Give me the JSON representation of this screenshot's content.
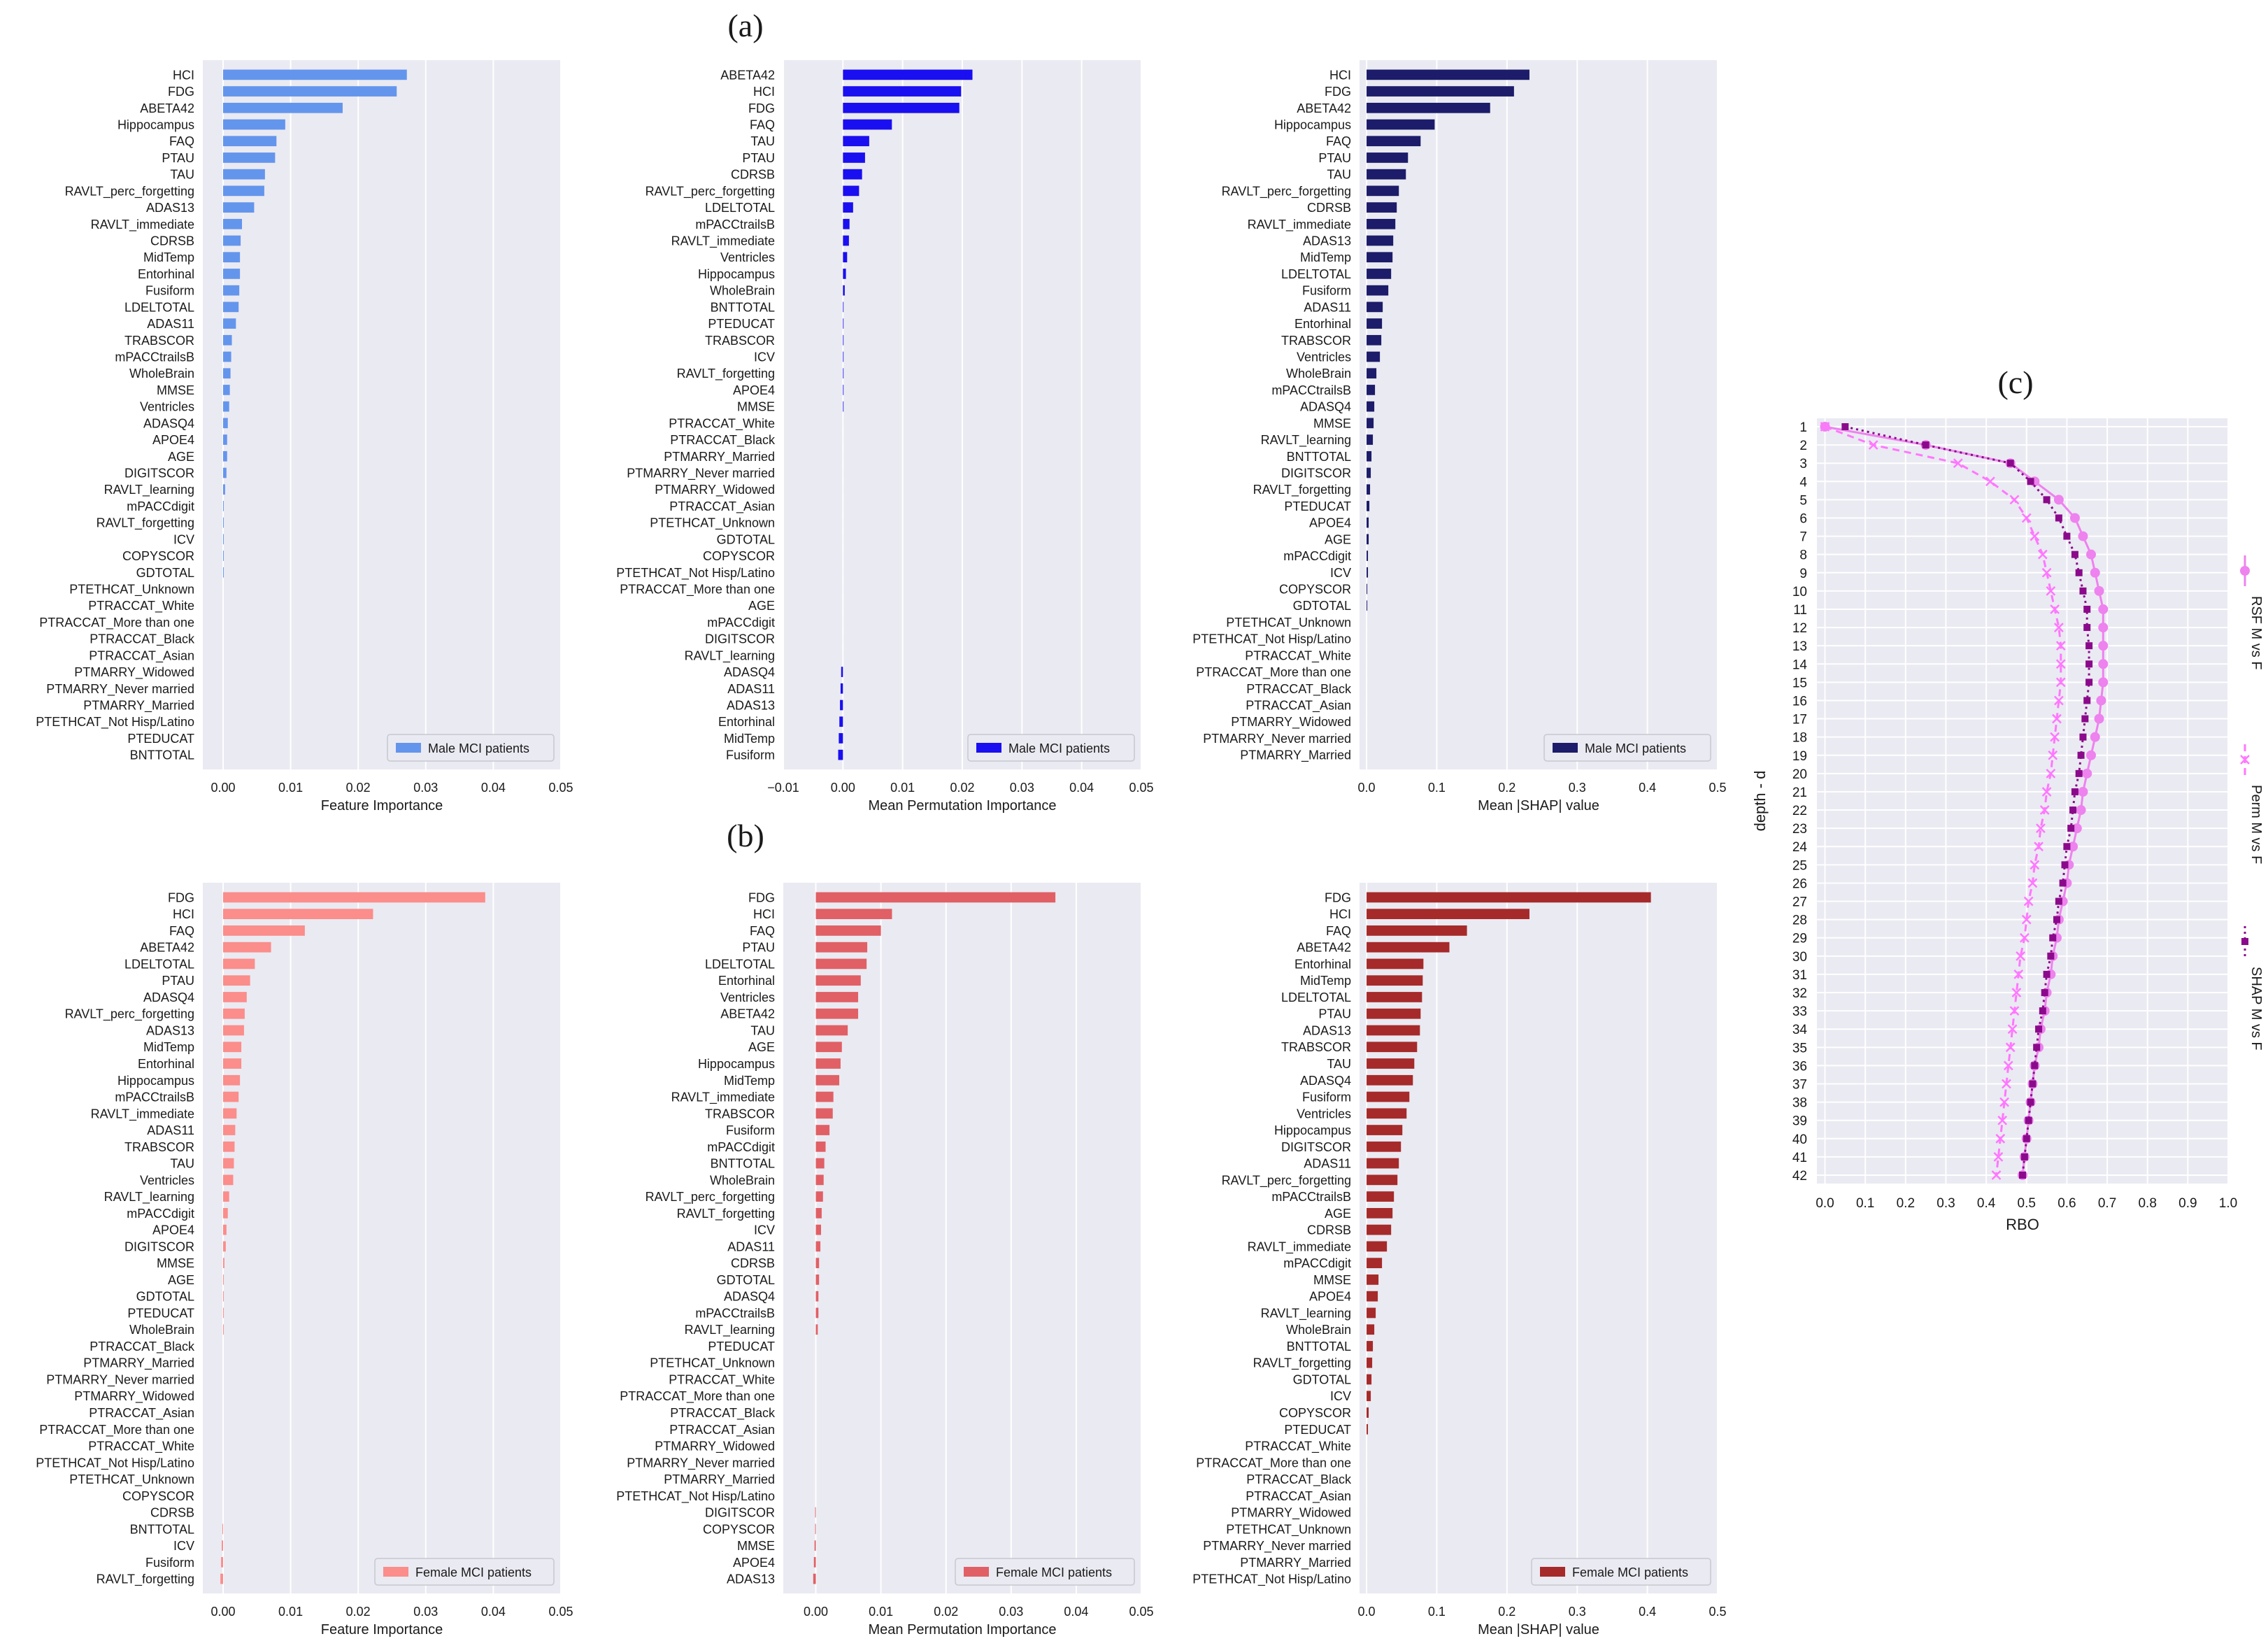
{
  "figure": {
    "panel_labels": [
      "(a)",
      "(b)",
      "(c)"
    ],
    "bg_color": "#eaeaf2",
    "grid_color": "#ffffff"
  },
  "chart_data": [
    {
      "id": "a1",
      "type": "bar",
      "orientation": "horizontal",
      "xlabel": "Feature Importance",
      "xlim": [
        -0.003,
        0.05
      ],
      "xticks": [
        0.0,
        0.01,
        0.02,
        0.03,
        0.04,
        0.05
      ],
      "xtick_labels": [
        "0.00",
        "0.01",
        "0.02",
        "0.03",
        "0.04",
        "0.05"
      ],
      "legend": "Male MCI patients",
      "color": "#6495ed",
      "categories": [
        "HCI",
        "FDG",
        "ABETA42",
        "Hippocampus",
        "FAQ",
        "PTAU",
        "TAU",
        "RAVLT_perc_forgetting",
        "ADAS13",
        "RAVLT_immediate",
        "CDRSB",
        "MidTemp",
        "Entorhinal",
        "Fusiform",
        "LDELTOTAL",
        "ADAS11",
        "TRABSCOR",
        "mPACCtrailsB",
        "WholeBrain",
        "MMSE",
        "Ventricles",
        "ADASQ4",
        "APOE4",
        "AGE",
        "DIGITSCOR",
        "RAVLT_learning",
        "mPACCdigit",
        "RAVLT_forgetting",
        "ICV",
        "COPYSCOR",
        "GDTOTAL",
        "PTETHCAT_Unknown",
        "PTRACCAT_White",
        "PTRACCAT_More than one",
        "PTRACCAT_Black",
        "PTRACCAT_Asian",
        "PTMARRY_Widowed",
        "PTMARRY_Never married",
        "PTMARRY_Married",
        "PTETHCAT_Not Hisp/Latino",
        "PTEDUCAT",
        "BNTTOTAL"
      ],
      "values": [
        0.0272,
        0.0257,
        0.0177,
        0.0092,
        0.0079,
        0.0077,
        0.0062,
        0.0061,
        0.0046,
        0.0028,
        0.0026,
        0.0025,
        0.0025,
        0.0024,
        0.0023,
        0.0019,
        0.0013,
        0.0012,
        0.0011,
        0.001,
        0.0009,
        0.0007,
        0.0006,
        0.0006,
        0.0005,
        0.0003,
        0.0001,
        0.0001,
        0.0001,
        0.0001,
        0.0001,
        0,
        0,
        0,
        0,
        0,
        0,
        0,
        0,
        0,
        0,
        0
      ]
    },
    {
      "id": "a2",
      "type": "bar",
      "orientation": "horizontal",
      "xlabel": "Mean Permutation Importance",
      "xlim": [
        -0.01,
        0.05
      ],
      "xticks": [
        -0.01,
        0.0,
        0.01,
        0.02,
        0.03,
        0.04,
        0.05
      ],
      "xtick_labels": [
        "−0.01",
        "0.00",
        "0.01",
        "0.02",
        "0.03",
        "0.04",
        "0.05"
      ],
      "legend": "Male MCI patients",
      "color": "#1a0ff0",
      "categories": [
        "ABETA42",
        "HCI",
        "FDG",
        "FAQ",
        "TAU",
        "PTAU",
        "CDRSB",
        "RAVLT_perc_forgetting",
        "LDELTOTAL",
        "mPACCtrailsB",
        "RAVLT_immediate",
        "Ventricles",
        "Hippocampus",
        "WholeBrain",
        "BNTTOTAL",
        "PTEDUCAT",
        "TRABSCOR",
        "ICV",
        "RAVLT_forgetting",
        "APOE4",
        "MMSE",
        "PTRACCAT_White",
        "PTRACCAT_Black",
        "PTMARRY_Married",
        "PTMARRY_Never married",
        "PTMARRY_Widowed",
        "PTRACCAT_Asian",
        "PTETHCAT_Unknown",
        "GDTOTAL",
        "COPYSCOR",
        "PTETHCAT_Not Hisp/Latino",
        "PTRACCAT_More than one",
        "AGE",
        "mPACCdigit",
        "DIGITSCOR",
        "RAVLT_learning",
        "ADASQ4",
        "ADAS11",
        "ADAS13",
        "Entorhinal",
        "MidTemp",
        "Fusiform"
      ],
      "values": [
        0.0217,
        0.0198,
        0.0195,
        0.0082,
        0.0044,
        0.0037,
        0.0032,
        0.0027,
        0.0017,
        0.0011,
        0.001,
        0.0007,
        0.0005,
        0.0003,
        0.0001,
        0.0001,
        0.0001,
        0.0001,
        0.0001,
        0.0001,
        0.0001,
        0,
        0,
        0,
        0,
        0,
        0,
        0,
        0,
        0,
        0,
        0,
        0,
        0,
        0,
        0,
        -0.0003,
        -0.0004,
        -0.0005,
        -0.0006,
        -0.0007,
        -0.0008
      ]
    },
    {
      "id": "a3",
      "type": "bar",
      "orientation": "horizontal",
      "xlabel": "Mean |SHAP| value",
      "xlim": [
        -0.01,
        0.5
      ],
      "xticks": [
        0.0,
        0.1,
        0.2,
        0.3,
        0.4,
        0.5
      ],
      "xtick_labels": [
        "0.0",
        "0.1",
        "0.2",
        "0.3",
        "0.4",
        "0.5"
      ],
      "legend": "Male MCI patients",
      "color": "#1c1c6a",
      "categories": [
        "HCI",
        "FDG",
        "ABETA42",
        "Hippocampus",
        "FAQ",
        "PTAU",
        "TAU",
        "RAVLT_perc_forgetting",
        "CDRSB",
        "RAVLT_immediate",
        "ADAS13",
        "MidTemp",
        "LDELTOTAL",
        "Fusiform",
        "ADAS11",
        "Entorhinal",
        "TRABSCOR",
        "Ventricles",
        "WholeBrain",
        "mPACCtrailsB",
        "ADASQ4",
        "MMSE",
        "RAVLT_learning",
        "BNTTOTAL",
        "DIGITSCOR",
        "RAVLT_forgetting",
        "PTEDUCAT",
        "APOE4",
        "AGE",
        "mPACCdigit",
        "ICV",
        "COPYSCOR",
        "GDTOTAL",
        "PTETHCAT_Unknown",
        "PTETHCAT_Not Hisp/Latino",
        "PTRACCAT_White",
        "PTRACCAT_More than one",
        "PTRACCAT_Black",
        "PTRACCAT_Asian",
        "PTMARRY_Widowed",
        "PTMARRY_Never married",
        "PTMARRY_Married"
      ],
      "values": [
        0.232,
        0.21,
        0.176,
        0.097,
        0.077,
        0.059,
        0.056,
        0.046,
        0.043,
        0.041,
        0.038,
        0.037,
        0.035,
        0.031,
        0.023,
        0.022,
        0.021,
        0.019,
        0.014,
        0.012,
        0.011,
        0.01,
        0.009,
        0.007,
        0.006,
        0.005,
        0.004,
        0.003,
        0.003,
        0.002,
        0.002,
        0.001,
        0.001,
        0,
        0,
        0,
        0,
        0,
        0,
        0,
        0,
        0
      ]
    },
    {
      "id": "b1",
      "type": "bar",
      "orientation": "horizontal",
      "xlabel": "Feature Importance",
      "xlim": [
        -0.003,
        0.05
      ],
      "xticks": [
        0.0,
        0.01,
        0.02,
        0.03,
        0.04,
        0.05
      ],
      "xtick_labels": [
        "0.00",
        "0.01",
        "0.02",
        "0.03",
        "0.04",
        "0.05"
      ],
      "legend": "Female MCI patients",
      "color": "#fb8d8b",
      "categories": [
        "FDG",
        "HCI",
        "FAQ",
        "ABETA42",
        "LDELTOTAL",
        "PTAU",
        "ADASQ4",
        "RAVLT_perc_forgetting",
        "ADAS13",
        "MidTemp",
        "Entorhinal",
        "Hippocampus",
        "mPACCtrailsB",
        "RAVLT_immediate",
        "ADAS11",
        "TRABSCOR",
        "TAU",
        "Ventricles",
        "RAVLT_learning",
        "mPACCdigit",
        "APOE4",
        "DIGITSCOR",
        "MMSE",
        "AGE",
        "GDTOTAL",
        "PTEDUCAT",
        "WholeBrain",
        "PTRACCAT_Black",
        "PTMARRY_Married",
        "PTMARRY_Never married",
        "PTMARRY_Widowed",
        "PTRACCAT_Asian",
        "PTRACCAT_More than one",
        "PTRACCAT_White",
        "PTETHCAT_Not Hisp/Latino",
        "PTETHCAT_Unknown",
        "COPYSCOR",
        "CDRSB",
        "BNTTOTAL",
        "ICV",
        "Fusiform",
        "RAVLT_forgetting"
      ],
      "values": [
        0.0388,
        0.0222,
        0.0121,
        0.0071,
        0.0047,
        0.004,
        0.0035,
        0.0032,
        0.0031,
        0.0027,
        0.0027,
        0.0025,
        0.0023,
        0.002,
        0.0018,
        0.0017,
        0.0016,
        0.0015,
        0.0009,
        0.0007,
        0.0005,
        0.0004,
        0.0002,
        0.0001,
        0.0001,
        0.0001,
        0.0001,
        0,
        0,
        0,
        0,
        0,
        0,
        0,
        0,
        0,
        0,
        0,
        -0.0001,
        -0.0002,
        -0.0003,
        -0.0004
      ]
    },
    {
      "id": "b2",
      "type": "bar",
      "orientation": "horizontal",
      "xlabel": "Mean Permutation Importance",
      "xlim": [
        -0.005,
        0.05
      ],
      "xticks": [
        0.0,
        0.01,
        0.02,
        0.03,
        0.04,
        0.05
      ],
      "xtick_labels": [
        "0.00",
        "0.01",
        "0.02",
        "0.03",
        "0.04",
        "0.05"
      ],
      "legend": "Female MCI patients",
      "color": "#e06065",
      "categories": [
        "FDG",
        "HCI",
        "FAQ",
        "PTAU",
        "LDELTOTAL",
        "Entorhinal",
        "Ventricles",
        "ABETA42",
        "TAU",
        "AGE",
        "Hippocampus",
        "MidTemp",
        "RAVLT_immediate",
        "TRABSCOR",
        "Fusiform",
        "mPACCdigit",
        "BNTTOTAL",
        "WholeBrain",
        "RAVLT_perc_forgetting",
        "RAVLT_forgetting",
        "ICV",
        "ADAS11",
        "CDRSB",
        "GDTOTAL",
        "ADASQ4",
        "mPACCtrailsB",
        "RAVLT_learning",
        "PTEDUCAT",
        "PTETHCAT_Unknown",
        "PTRACCAT_White",
        "PTRACCAT_More than one",
        "PTRACCAT_Black",
        "PTRACCAT_Asian",
        "PTMARRY_Widowed",
        "PTMARRY_Never married",
        "PTMARRY_Married",
        "PTETHCAT_Not Hisp/Latino",
        "DIGITSCOR",
        "COPYSCOR",
        "MMSE",
        "APOE4",
        "ADAS13"
      ],
      "values": [
        0.0368,
        0.0117,
        0.01,
        0.0079,
        0.0078,
        0.0069,
        0.0065,
        0.0065,
        0.0049,
        0.004,
        0.0038,
        0.0036,
        0.0027,
        0.0026,
        0.0021,
        0.0015,
        0.0013,
        0.0012,
        0.0011,
        0.0009,
        0.0008,
        0.0007,
        0.0005,
        0.0005,
        0.0004,
        0.0004,
        0.0003,
        0,
        0,
        0,
        0,
        0,
        0,
        0,
        0,
        0,
        0,
        -0.0001,
        -0.0001,
        -0.0002,
        -0.0003,
        -0.0004
      ]
    },
    {
      "id": "b3",
      "type": "bar",
      "orientation": "horizontal",
      "xlabel": "Mean |SHAP| value",
      "xlim": [
        -0.01,
        0.5
      ],
      "xticks": [
        0.0,
        0.1,
        0.2,
        0.3,
        0.4,
        0.5
      ],
      "xtick_labels": [
        "0.0",
        "0.1",
        "0.2",
        "0.3",
        "0.4",
        "0.5"
      ],
      "legend": "Female MCI patients",
      "color": "#a62a2a",
      "categories": [
        "FDG",
        "HCI",
        "FAQ",
        "ABETA42",
        "Entorhinal",
        "MidTemp",
        "LDELTOTAL",
        "PTAU",
        "ADAS13",
        "TRABSCOR",
        "TAU",
        "ADASQ4",
        "Fusiform",
        "Ventricles",
        "Hippocampus",
        "DIGITSCOR",
        "ADAS11",
        "RAVLT_perc_forgetting",
        "mPACCtrailsB",
        "AGE",
        "CDRSB",
        "RAVLT_immediate",
        "mPACCdigit",
        "MMSE",
        "APOE4",
        "RAVLT_learning",
        "WholeBrain",
        "BNTTOTAL",
        "RAVLT_forgetting",
        "GDTOTAL",
        "ICV",
        "COPYSCOR",
        "PTEDUCAT",
        "PTRACCAT_White",
        "PTRACCAT_More than one",
        "PTRACCAT_Black",
        "PTRACCAT_Asian",
        "PTMARRY_Widowed",
        "PTETHCAT_Unknown",
        "PTMARRY_Never married",
        "PTMARRY_Married",
        "PTETHCAT_Not Hisp/Latino"
      ],
      "values": [
        0.405,
        0.232,
        0.143,
        0.118,
        0.081,
        0.08,
        0.079,
        0.077,
        0.076,
        0.072,
        0.068,
        0.066,
        0.061,
        0.057,
        0.051,
        0.049,
        0.046,
        0.044,
        0.039,
        0.037,
        0.035,
        0.029,
        0.022,
        0.017,
        0.016,
        0.013,
        0.011,
        0.009,
        0.008,
        0.007,
        0.006,
        0.003,
        0.002,
        0,
        0,
        0,
        0,
        0,
        0,
        0,
        0,
        0
      ]
    },
    {
      "id": "c",
      "type": "line",
      "orientation": "vertical-depth",
      "xlabel": "RBO",
      "ylabel": "depth - d",
      "xlim": [
        -0.02,
        1.0
      ],
      "xticks": [
        0.0,
        0.1,
        0.2,
        0.3,
        0.4,
        0.5,
        0.6,
        0.7,
        0.8,
        0.9,
        1.0
      ],
      "xtick_labels": [
        "0.0",
        "0.1",
        "0.2",
        "0.3",
        "0.4",
        "0.5",
        "0.6",
        "0.7",
        "0.8",
        "0.9",
        "1.0"
      ],
      "depths": [
        1,
        2,
        3,
        4,
        5,
        6,
        7,
        8,
        9,
        10,
        11,
        12,
        13,
        14,
        15,
        16,
        17,
        18,
        19,
        20,
        21,
        22,
        23,
        24,
        25,
        26,
        27,
        28,
        29,
        30,
        31,
        32,
        33,
        34,
        35,
        36,
        37,
        38,
        39,
        40,
        41,
        42
      ],
      "series": [
        {
          "name": "RSF M vs F",
          "color": "#ee82ee",
          "style": "solid",
          "marker": "circle",
          "values": [
            0.0,
            0.25,
            0.46,
            0.52,
            0.58,
            0.62,
            0.64,
            0.66,
            0.67,
            0.68,
            0.69,
            0.69,
            0.69,
            0.69,
            0.69,
            0.685,
            0.68,
            0.67,
            0.66,
            0.65,
            0.64,
            0.635,
            0.625,
            0.615,
            0.605,
            0.6,
            0.59,
            0.58,
            0.575,
            0.565,
            0.56,
            0.55,
            0.545,
            0.535,
            0.53,
            0.52,
            0.515,
            0.51,
            0.505,
            0.5,
            0.495,
            0.49
          ]
        },
        {
          "name": "Perm M vs F",
          "color": "#ff77ff",
          "style": "dashed",
          "marker": "x",
          "values": [
            0.0,
            0.12,
            0.33,
            0.41,
            0.47,
            0.5,
            0.52,
            0.54,
            0.55,
            0.56,
            0.57,
            0.58,
            0.585,
            0.585,
            0.585,
            0.58,
            0.575,
            0.57,
            0.565,
            0.56,
            0.55,
            0.545,
            0.535,
            0.53,
            0.52,
            0.515,
            0.505,
            0.5,
            0.495,
            0.485,
            0.48,
            0.475,
            0.47,
            0.465,
            0.46,
            0.455,
            0.45,
            0.445,
            0.44,
            0.435,
            0.43,
            0.425
          ]
        },
        {
          "name": "SHAP M vs F",
          "color": "#8b0a8b",
          "style": "dotted",
          "marker": "square",
          "values": [
            0.05,
            0.25,
            0.46,
            0.51,
            0.55,
            0.58,
            0.6,
            0.62,
            0.63,
            0.64,
            0.65,
            0.65,
            0.655,
            0.655,
            0.655,
            0.65,
            0.645,
            0.64,
            0.635,
            0.63,
            0.62,
            0.615,
            0.61,
            0.6,
            0.595,
            0.59,
            0.58,
            0.575,
            0.565,
            0.56,
            0.55,
            0.545,
            0.54,
            0.53,
            0.525,
            0.52,
            0.515,
            0.51,
            0.505,
            0.5,
            0.495,
            0.49
          ]
        }
      ]
    }
  ]
}
